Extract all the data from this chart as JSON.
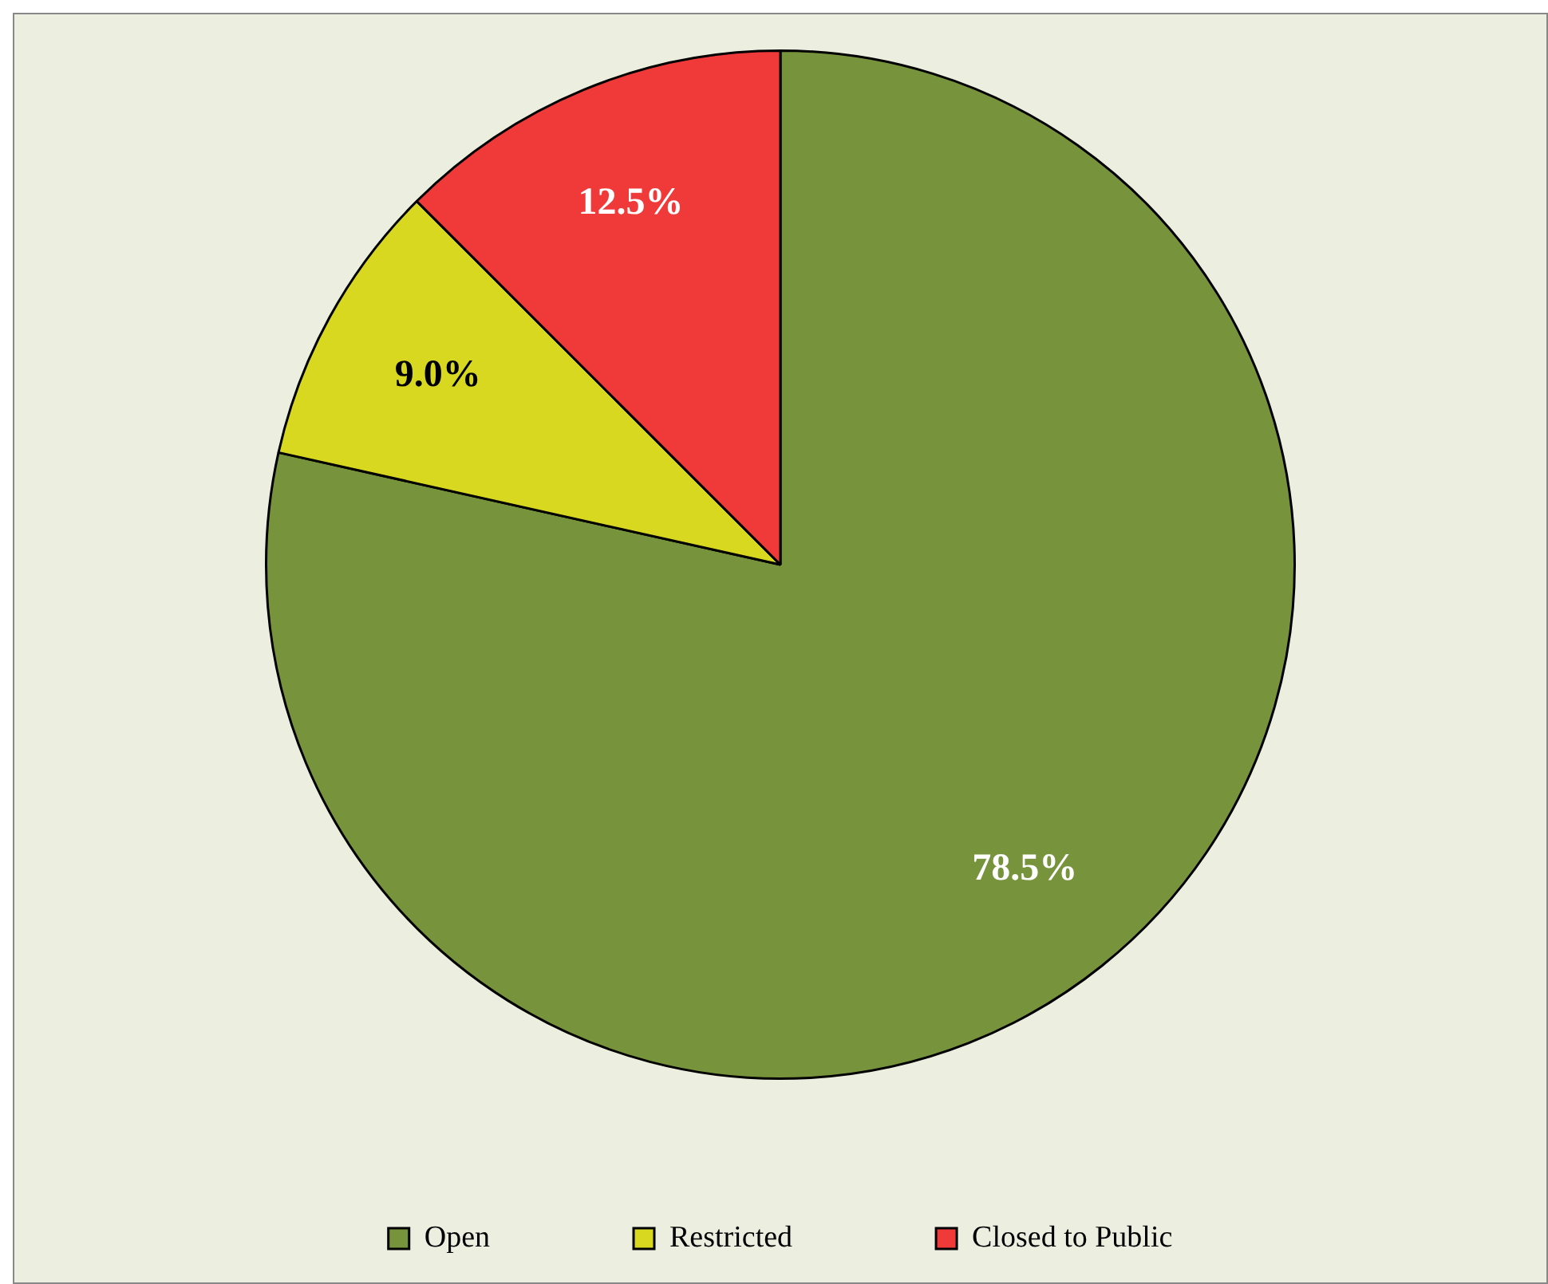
{
  "chart_data": {
    "type": "pie",
    "categories": [
      "Open",
      "Restricted",
      "Closed to Public"
    ],
    "values": [
      78.5,
      9.0,
      12.5
    ],
    "colors": [
      "#77933c",
      "#d8d820",
      "#f03a3a"
    ],
    "value_labels": [
      "78.5%",
      "9.0%",
      "12.5%"
    ],
    "legend": "bottom"
  }
}
